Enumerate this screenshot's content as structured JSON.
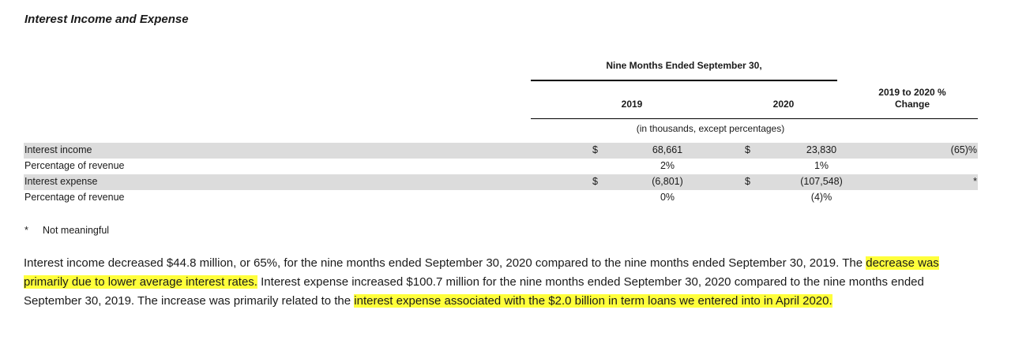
{
  "title": "Interest Income and Expense",
  "table": {
    "period_header": "Nine Months Ended September 30,",
    "col_2019": "2019",
    "col_2020": "2020",
    "col_change_line1": "2019 to 2020 %",
    "col_change_line2": "Change",
    "units": "(in thousands, except percentages)",
    "rows": [
      {
        "label": "Interest income",
        "cur1": "$",
        "v2019": "68,661",
        "cur2": "$",
        "v2020": "23,830",
        "change": "(65)%"
      },
      {
        "label": "Percentage of revenue",
        "cur1": "",
        "v2019": "2%",
        "cur2": "",
        "v2020": "1%",
        "change": ""
      },
      {
        "label": "Interest expense",
        "cur1": "$",
        "v2019": "(6,801)",
        "cur2": "$",
        "v2020": "(107,548)",
        "change": "*"
      },
      {
        "label": "Percentage of revenue",
        "cur1": "",
        "v2019": "0%",
        "cur2": "",
        "v2020": "(4)%",
        "change": ""
      }
    ]
  },
  "footnote": {
    "mark": "*",
    "text": "Not meaningful"
  },
  "paragraph": {
    "p1": "Interest income decreased $44.8 million, or 65%, for the nine months ended September 30, 2020 compared to the nine months ended September 30, 2019. The ",
    "h1": "decrease was primarily due to lower average interest rates.",
    "p2": " Interest expense increased $100.7 million for the nine months ended September 30, 2020 compared to the nine months ended September 30, 2019. The increase was primarily related to the ",
    "h2": "interest expense associated with the $2.0 billion in term loans we entered into in April 2020.",
    "highlight_color": "#ffff3b"
  }
}
